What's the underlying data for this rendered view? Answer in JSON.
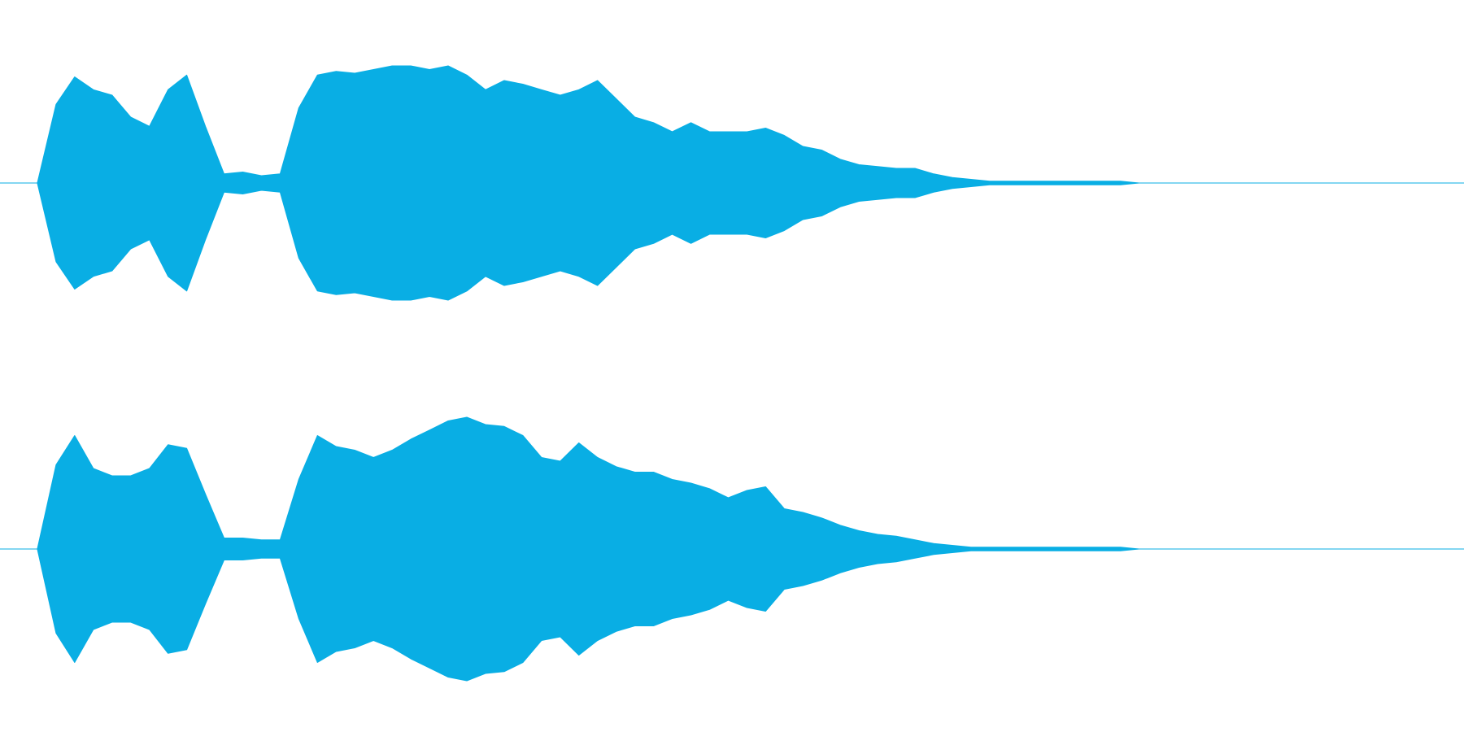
{
  "chart_data": {
    "type": "waveform",
    "color": "#09aee4",
    "series": [
      {
        "values": [
          0,
          0.43,
          0.58,
          0.51,
          0.48,
          0.36,
          0.31,
          0.51,
          0.59,
          0.31,
          0.05,
          0.06,
          0.04,
          0.05,
          0.41,
          0.59,
          0.61,
          0.6,
          0.62,
          0.64,
          0.64,
          0.62,
          0.64,
          0.59,
          0.51,
          0.56,
          0.54,
          0.51,
          0.48,
          0.51,
          0.56,
          0.46,
          0.36,
          0.33,
          0.28,
          0.33,
          0.28,
          0.28,
          0.28,
          0.3,
          0.26,
          0.2,
          0.18,
          0.13,
          0.1,
          0.09,
          0.08,
          0.08,
          0.05,
          0.03,
          0.02,
          0.01,
          0.01,
          0.01,
          0.01,
          0.01,
          0.01,
          0.01,
          0.01,
          0
        ]
      },
      {
        "values": [
          0,
          0.46,
          0.62,
          0.44,
          0.4,
          0.4,
          0.44,
          0.57,
          0.55,
          0.3,
          0.06,
          0.06,
          0.05,
          0.05,
          0.38,
          0.62,
          0.56,
          0.54,
          0.5,
          0.54,
          0.6,
          0.65,
          0.7,
          0.72,
          0.68,
          0.67,
          0.62,
          0.5,
          0.48,
          0.58,
          0.5,
          0.45,
          0.42,
          0.42,
          0.38,
          0.36,
          0.33,
          0.28,
          0.32,
          0.34,
          0.22,
          0.2,
          0.17,
          0.13,
          0.1,
          0.08,
          0.07,
          0.05,
          0.03,
          0.02,
          0.01,
          0.01,
          0.01,
          0.01,
          0.01,
          0.01,
          0.01,
          0.01,
          0.01,
          0
        ]
      }
    ]
  }
}
